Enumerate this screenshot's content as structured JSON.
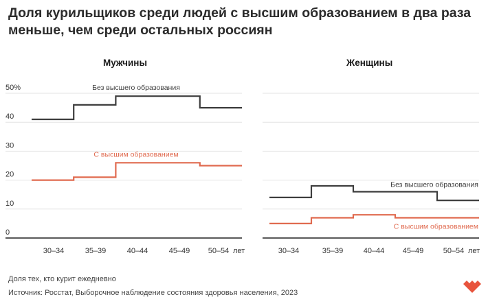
{
  "title": "Доля курильщиков среди людей с высшим образованием в два раза меньше, чем среди остальных россиян",
  "note": "Доля тех, кто курит ежедневно",
  "source": "Источник: Росстат, Выборочное наблюдение состояния здоровья населения, 2023",
  "colors": {
    "no_degree": "#3d3d3d",
    "degree": "#e06a4f",
    "grid": "#e3e3e3",
    "axis": "#222222",
    "logo": "#e8543d"
  },
  "chart_data": [
    {
      "type": "line",
      "title": "Мужчины",
      "step": true,
      "x": [
        "30–34",
        "35–39",
        "40–44",
        "45–49",
        "50–54"
      ],
      "x_unit_label": "лет",
      "ylim": [
        0,
        50
      ],
      "yticks": [
        "0",
        "10",
        "20",
        "30",
        "40",
        "50%"
      ],
      "grid": true,
      "series": [
        {
          "name": "Без высшего образования",
          "values": [
            41,
            46,
            49,
            49,
            45
          ]
        },
        {
          "name": "С высшим образованием",
          "values": [
            20,
            21,
            26,
            26,
            25
          ]
        }
      ]
    },
    {
      "type": "line",
      "title": "Женщины",
      "step": true,
      "x": [
        "30–34",
        "35–39",
        "40–44",
        "45–49",
        "50–54"
      ],
      "x_unit_label": "лет",
      "ylim": [
        0,
        50
      ],
      "grid": true,
      "series": [
        {
          "name": "Без высшего образования",
          "values": [
            14,
            18,
            16,
            16,
            13
          ]
        },
        {
          "name": "С высшим образованием",
          "values": [
            5,
            7,
            8,
            7,
            7
          ]
        }
      ]
    }
  ]
}
